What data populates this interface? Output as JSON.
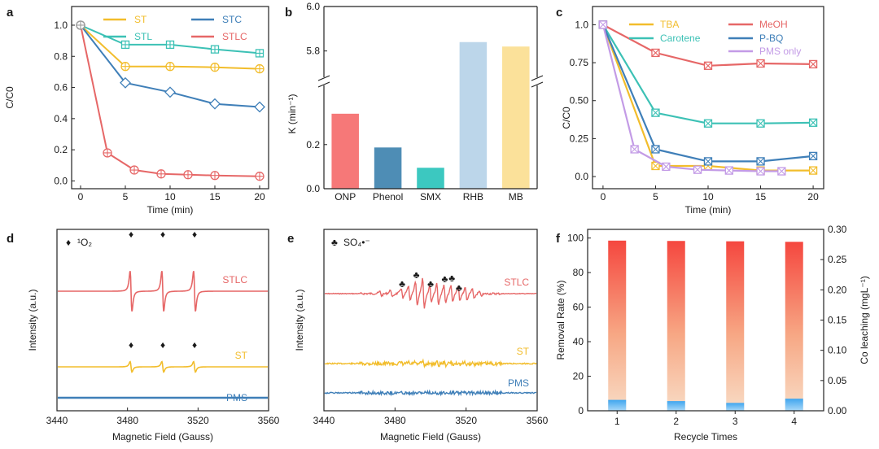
{
  "colors": {
    "yellow": "#f2bd2c",
    "teal": "#3cc1b5",
    "blue": "#3f7fb8",
    "red": "#e66767",
    "pink": "#f49aa1",
    "purple": "#c39be6",
    "axis": "#222222"
  },
  "chart_data": [
    {
      "panel": "a",
      "type": "line",
      "xlabel": "Time (min)",
      "ylabel": "C/C0",
      "xlim": [
        -1,
        21
      ],
      "ylim": [
        -0.05,
        1.12
      ],
      "xticks": [
        "0",
        "5",
        "10",
        "15",
        "20"
      ],
      "yticks": [
        "0.0",
        "0.2",
        "0.4",
        "0.6",
        "0.8",
        "1.0"
      ],
      "series": [
        {
          "name": "ST",
          "color": "#f2bd2c",
          "marker": "circle-plus",
          "x": [
            0,
            5,
            10,
            15,
            20
          ],
          "y": [
            1.0,
            0.735,
            0.735,
            0.73,
            0.72
          ]
        },
        {
          "name": "STL",
          "color": "#3cc1b5",
          "marker": "square-plus",
          "x": [
            0,
            5,
            10,
            15,
            20
          ],
          "y": [
            1.0,
            0.875,
            0.875,
            0.845,
            0.82
          ]
        },
        {
          "name": "STC",
          "color": "#3f7fb8",
          "marker": "diamond",
          "x": [
            0,
            5,
            10,
            15,
            20
          ],
          "y": [
            1.0,
            0.63,
            0.57,
            0.495,
            0.475
          ]
        },
        {
          "name": "STLC",
          "color": "#e66767",
          "marker": "circle-plus",
          "x": [
            0,
            3,
            6,
            9,
            12,
            15,
            20
          ],
          "y": [
            1.0,
            0.18,
            0.07,
            0.045,
            0.04,
            0.035,
            0.03
          ]
        }
      ]
    },
    {
      "panel": "b",
      "type": "bar",
      "ylabel": "K (min⁻¹)",
      "categories": [
        "ONP",
        "Phenol",
        "SMX",
        "RHB",
        "MB"
      ],
      "values": [
        0.34,
        0.187,
        0.095,
        5.84,
        5.82
      ],
      "colors": [
        "#f67878",
        "#4e8db5",
        "#3cc8c0",
        "#bcd6ea",
        "#fbe19a"
      ],
      "axis_break": "0.45–5.7",
      "yticks_lower": [
        "0.0",
        "0.2"
      ],
      "yticks_upper": [
        "5.8",
        "6.0"
      ],
      "ylim_lower": [
        0,
        0.45
      ],
      "ylim_upper": [
        5.7,
        6.0
      ]
    },
    {
      "panel": "c",
      "type": "line",
      "xlabel": "Time (min)",
      "ylabel": "C/C0",
      "xlim": [
        -1,
        21
      ],
      "ylim": [
        -0.08,
        1.12
      ],
      "xticks": [
        "0",
        "5",
        "10",
        "15",
        "20"
      ],
      "yticks": [
        "0.0",
        "0.25",
        "0.50",
        "0.75",
        "1.0"
      ],
      "series": [
        {
          "name": "TBA",
          "color": "#f2bd2c",
          "marker": "square-x",
          "x": [
            0,
            5,
            10,
            15,
            20
          ],
          "y": [
            1.0,
            0.07,
            0.07,
            0.04,
            0.04
          ]
        },
        {
          "name": "Carotene",
          "color": "#3cc1b5",
          "marker": "square-x",
          "x": [
            0,
            5,
            10,
            15,
            20
          ],
          "y": [
            1.0,
            0.42,
            0.35,
            0.35,
            0.355
          ]
        },
        {
          "name": "MeOH",
          "color": "#e66767",
          "marker": "square-x",
          "x": [
            0,
            5,
            10,
            15,
            20
          ],
          "y": [
            1.0,
            0.815,
            0.73,
            0.745,
            0.74
          ]
        },
        {
          "name": "P-BQ",
          "color": "#3f7fb8",
          "marker": "square-x",
          "x": [
            0,
            5,
            10,
            15,
            20
          ],
          "y": [
            1.0,
            0.18,
            0.1,
            0.1,
            0.135
          ]
        },
        {
          "name": "PMS only",
          "color": "#c39be6",
          "marker": "square-x",
          "x": [
            0,
            3,
            6,
            9,
            12,
            15,
            17
          ],
          "y": [
            1.0,
            0.18,
            0.065,
            0.045,
            0.04,
            0.035,
            0.035
          ]
        }
      ]
    },
    {
      "panel": "d",
      "type": "line",
      "xlabel": "Magnetic Field (Gauss)",
      "ylabel": "Intensity (a.u.)",
      "xlim": [
        3440,
        3560
      ],
      "xticks": [
        "3440",
        "3480",
        "3520",
        "3560"
      ],
      "species_symbol": "♦",
      "species_label": "¹O₂",
      "peak_centers": [
        3482,
        3500,
        3518
      ],
      "series": [
        {
          "name": "STLC",
          "color": "#e66767",
          "amplitude": 1.0
        },
        {
          "name": "ST",
          "color": "#f2bd2c",
          "amplitude": 0.25
        },
        {
          "name": "PMS",
          "color": "#3f7fb8",
          "amplitude": 0.0
        }
      ]
    },
    {
      "panel": "e",
      "type": "line",
      "xlabel": "Magnetic Field (Gauss)",
      "ylabel": "Intensity (a.u.)",
      "xlim": [
        3440,
        3560
      ],
      "xticks": [
        "3440",
        "3480",
        "3520",
        "3560"
      ],
      "species_symbol": "♣",
      "species_label": "SO₄•⁻",
      "series": [
        {
          "name": "STLC",
          "color": "#e66767"
        },
        {
          "name": "ST",
          "color": "#f2bd2c"
        },
        {
          "name": "PMS",
          "color": "#3f7fb8"
        }
      ]
    },
    {
      "panel": "f",
      "type": "bar",
      "xlabel": "Recycle Times",
      "ylabel": "Removal Rate (%)",
      "ylabel_right": "Co leaching (mgL⁻¹)",
      "categories": [
        "1",
        "2",
        "3",
        "4"
      ],
      "ylim": [
        0,
        105
      ],
      "ylim_right": [
        0,
        0.3
      ],
      "yticks": [
        "0",
        "20",
        "40",
        "60",
        "80",
        "100"
      ],
      "yticks_right": [
        "0.00",
        "0.05",
        "0.10",
        "0.15",
        "0.20",
        "0.25",
        "0.30"
      ],
      "series": [
        {
          "name": "Removal Rate (%)",
          "axis": "left",
          "values": [
            98.5,
            98.3,
            98.1,
            97.8
          ]
        },
        {
          "name": "Co leaching (mgL⁻¹)",
          "axis": "right",
          "values": [
            0.018,
            0.016,
            0.013,
            0.02
          ]
        }
      ]
    }
  ]
}
